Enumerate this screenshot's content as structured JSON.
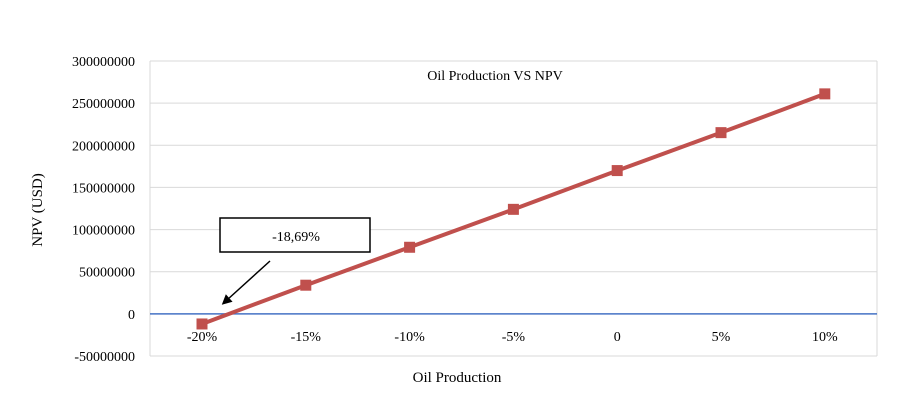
{
  "chart_data": {
    "type": "line",
    "title": "Oil Production VS NPV",
    "xlabel": "Oil Production",
    "ylabel": "NPV (USD)",
    "categories": [
      "-20%",
      "-15%",
      "-10%",
      "-5%",
      "0",
      "5%",
      "10%"
    ],
    "series": [
      {
        "values": [
          -12000000,
          34000000,
          79000000,
          124000000,
          170000000,
          215000000,
          261000000
        ]
      }
    ],
    "ylim": [
      -50000000,
      300000000
    ],
    "yticks": [
      300000000,
      250000000,
      200000000,
      150000000,
      100000000,
      50000000,
      0,
      -50000000
    ],
    "grid": true,
    "legend": "none",
    "annotation": {
      "text": "-18,69%",
      "x_value": -18.69
    },
    "colors": {
      "series": "#c0504d",
      "grid": "#d9d9d9",
      "axis": "#4472c4"
    }
  }
}
